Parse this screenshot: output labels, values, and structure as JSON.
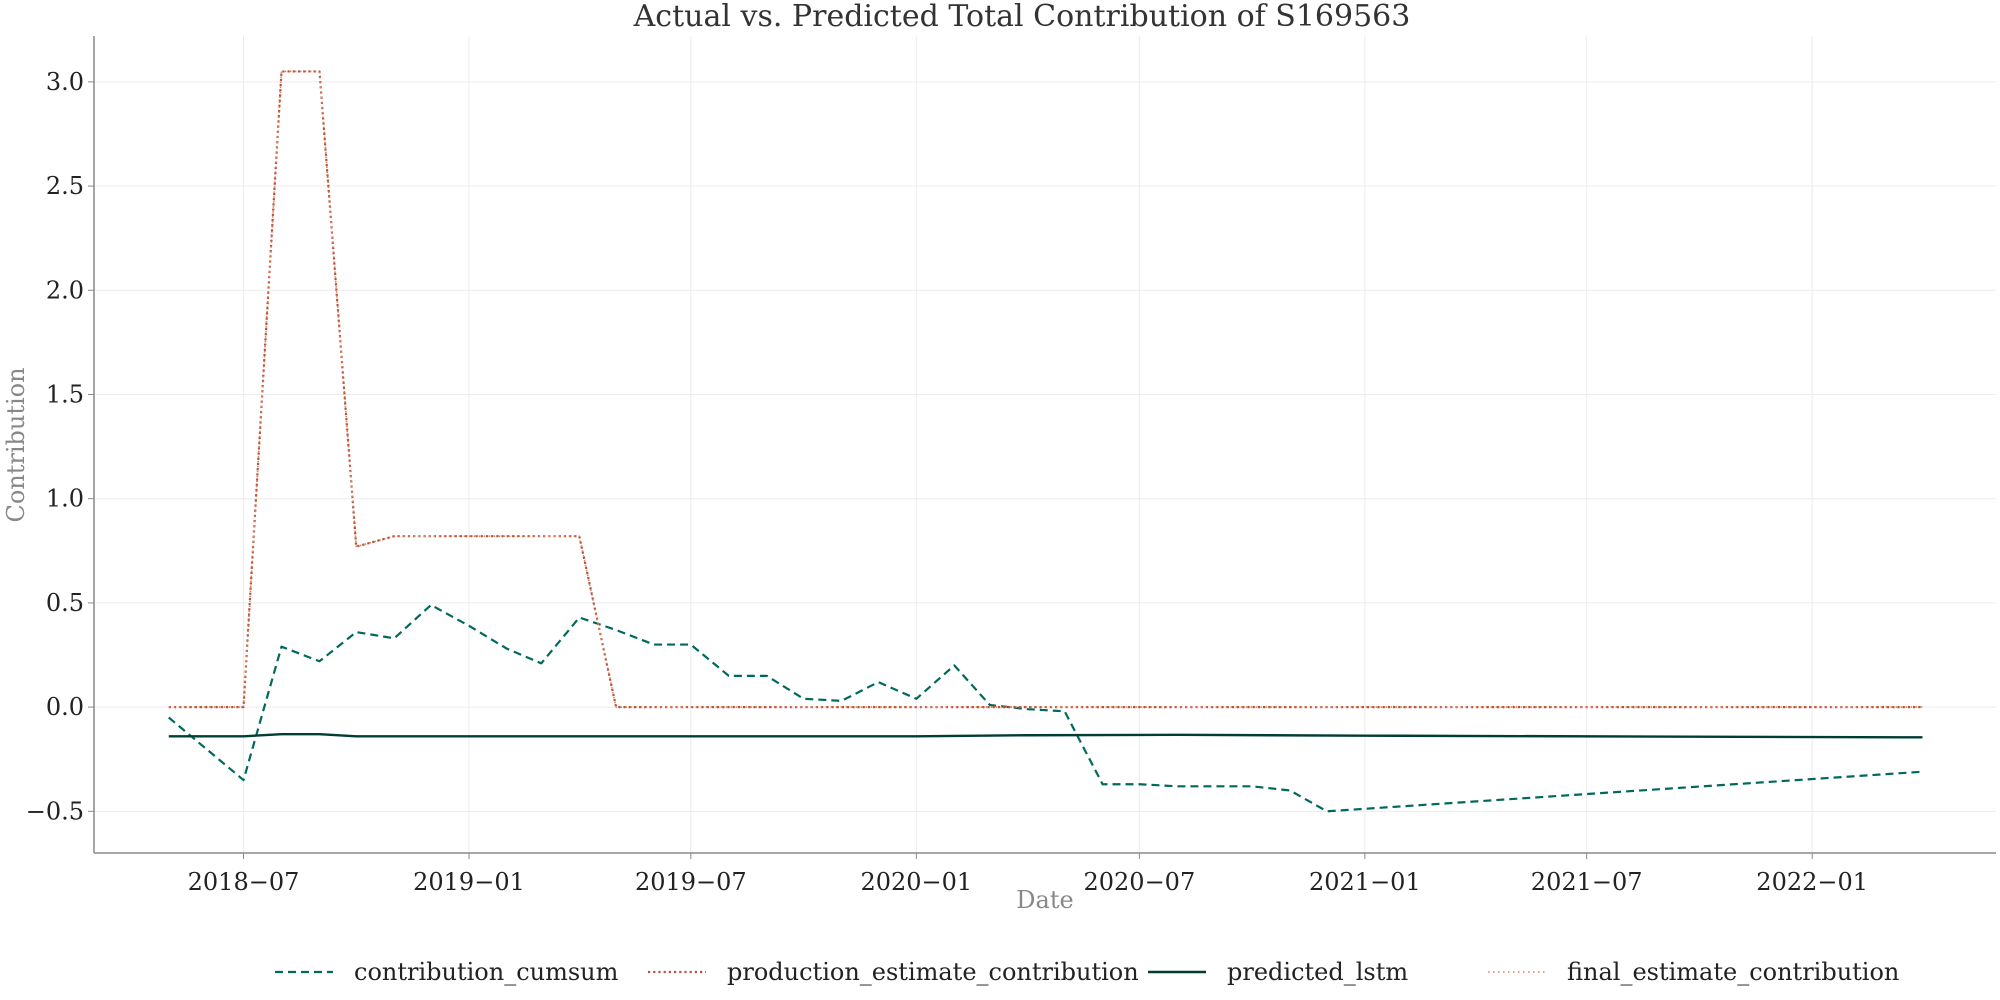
{
  "chart_data": {
    "type": "line",
    "title": "Actual vs. Predicted Total Contribution of S169563",
    "xlabel": "Date",
    "ylabel": "Contribution",
    "x_type": "date",
    "xlim": [
      "2018-03-01",
      "2022-05-31"
    ],
    "ylim": [
      -0.7,
      3.22
    ],
    "x_ticks": [
      "2018-07-01",
      "2019-01-01",
      "2019-07-01",
      "2020-01-01",
      "2020-07-01",
      "2021-01-01",
      "2021-07-01",
      "2022-01-01"
    ],
    "x_tick_labels": [
      "2018−07",
      "2019−01",
      "2019−07",
      "2020−01",
      "2020−07",
      "2021−01",
      "2021−07",
      "2022−01"
    ],
    "y_ticks": [
      -0.5,
      0.0,
      0.5,
      1.0,
      1.5,
      2.0,
      2.5,
      3.0
    ],
    "y_tick_labels": [
      "−0.5",
      "0.0",
      "0.5",
      "1.0",
      "1.5",
      "2.0",
      "2.5",
      "3.0"
    ],
    "grid": true,
    "legend_position": "bottom-center",
    "series": [
      {
        "name": "contribution_cumsum",
        "color": "#00695c",
        "style": "dashed",
        "points": [
          [
            "2018-05-01",
            -0.05
          ],
          [
            "2018-07-01",
            -0.35
          ],
          [
            "2018-08-01",
            0.29
          ],
          [
            "2018-09-01",
            0.22
          ],
          [
            "2018-10-01",
            0.36
          ],
          [
            "2018-11-01",
            0.33
          ],
          [
            "2018-12-01",
            0.49
          ],
          [
            "2019-01-01",
            0.39
          ],
          [
            "2019-02-01",
            0.28
          ],
          [
            "2019-03-01",
            0.21
          ],
          [
            "2019-04-01",
            0.43
          ],
          [
            "2019-05-01",
            0.37
          ],
          [
            "2019-06-01",
            0.3
          ],
          [
            "2019-07-01",
            0.3
          ],
          [
            "2019-08-01",
            0.15
          ],
          [
            "2019-09-01",
            0.15
          ],
          [
            "2019-10-01",
            0.04
          ],
          [
            "2019-11-01",
            0.03
          ],
          [
            "2019-12-01",
            0.12
          ],
          [
            "2020-01-01",
            0.04
          ],
          [
            "2020-02-01",
            0.2
          ],
          [
            "2020-03-01",
            0.01
          ],
          [
            "2020-04-01",
            -0.01
          ],
          [
            "2020-05-01",
            -0.02
          ],
          [
            "2020-06-01",
            -0.37
          ],
          [
            "2020-07-01",
            -0.37
          ],
          [
            "2020-08-01",
            -0.38
          ],
          [
            "2020-09-01",
            -0.38
          ],
          [
            "2020-10-01",
            -0.38
          ],
          [
            "2020-11-01",
            -0.4
          ],
          [
            "2020-12-01",
            -0.5
          ],
          [
            "2022-04-01",
            -0.31
          ]
        ]
      },
      {
        "name": "production_estimate_contribution",
        "color": "#b5533c",
        "style": "dotted",
        "points": [
          [
            "2018-05-01",
            0.0
          ],
          [
            "2018-07-01",
            0.0
          ],
          [
            "2018-08-01",
            3.05
          ],
          [
            "2018-09-01",
            3.05
          ],
          [
            "2018-10-01",
            0.77
          ],
          [
            "2018-11-01",
            0.82
          ],
          [
            "2018-12-01",
            0.82
          ],
          [
            "2019-01-01",
            0.82
          ],
          [
            "2019-02-01",
            0.82
          ],
          [
            "2019-03-01",
            0.82
          ],
          [
            "2019-04-01",
            0.82
          ],
          [
            "2019-05-01",
            0.0
          ],
          [
            "2020-01-01",
            0.0
          ],
          [
            "2021-01-01",
            0.0
          ],
          [
            "2022-04-01",
            0.0
          ]
        ]
      },
      {
        "name": "predicted_lstm",
        "color": "#003d33",
        "style": "solid",
        "points": [
          [
            "2018-05-01",
            -0.14
          ],
          [
            "2018-07-01",
            -0.14
          ],
          [
            "2018-08-01",
            -0.13
          ],
          [
            "2018-09-01",
            -0.13
          ],
          [
            "2018-10-01",
            -0.14
          ],
          [
            "2018-11-01",
            -0.14
          ],
          [
            "2018-12-01",
            -0.14
          ],
          [
            "2019-01-01",
            -0.14
          ],
          [
            "2019-02-01",
            -0.14
          ],
          [
            "2019-03-01",
            -0.14
          ],
          [
            "2019-04-01",
            -0.14
          ],
          [
            "2019-05-01",
            -0.14
          ],
          [
            "2019-06-01",
            -0.14
          ],
          [
            "2019-07-01",
            -0.14
          ],
          [
            "2019-10-01",
            -0.14
          ],
          [
            "2020-01-01",
            -0.14
          ],
          [
            "2020-04-01",
            -0.135
          ],
          [
            "2020-08-01",
            -0.133
          ],
          [
            "2021-01-01",
            -0.137
          ],
          [
            "2022-04-01",
            -0.145
          ]
        ]
      },
      {
        "name": "final_estimate_contribution",
        "color": "#e0805a",
        "style": "dotted-fine",
        "points": [
          [
            "2018-05-01",
            0.0
          ],
          [
            "2018-07-01",
            0.0
          ],
          [
            "2018-08-01",
            3.05
          ],
          [
            "2018-09-01",
            3.05
          ],
          [
            "2018-10-01",
            0.77
          ],
          [
            "2018-11-01",
            0.82
          ],
          [
            "2018-12-01",
            0.82
          ],
          [
            "2019-01-01",
            0.82
          ],
          [
            "2019-02-01",
            0.82
          ],
          [
            "2019-03-01",
            0.82
          ],
          [
            "2019-04-01",
            0.82
          ],
          [
            "2019-05-01",
            0.0
          ],
          [
            "2020-01-01",
            0.0
          ],
          [
            "2021-01-01",
            0.0
          ],
          [
            "2022-04-01",
            0.0
          ]
        ]
      }
    ]
  }
}
